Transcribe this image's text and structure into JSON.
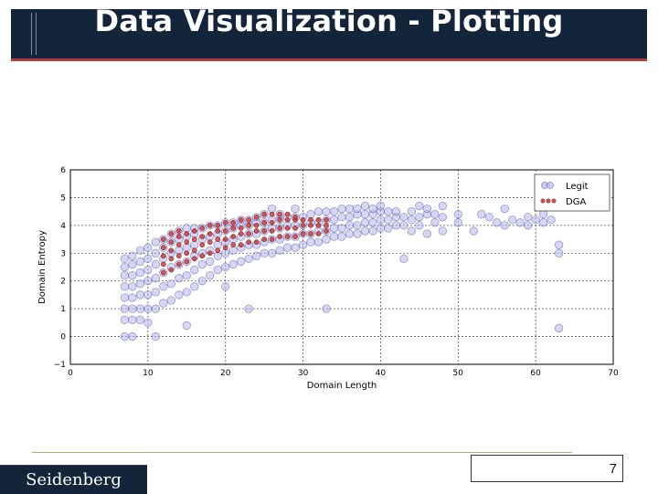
{
  "slide": {
    "title": "Data Visualization - Plotting",
    "brand": "Seidenberg",
    "page_number": "7"
  },
  "chart_data": {
    "type": "scatter",
    "xlabel": "Domain Length",
    "ylabel": "Domain Entropy",
    "xlim": [
      0,
      70
    ],
    "ylim": [
      -1,
      6
    ],
    "xticks": [
      "0",
      "10",
      "20",
      "30",
      "40",
      "50",
      "60",
      "70"
    ],
    "yticks": [
      "−1",
      "0",
      "1",
      "2",
      "3",
      "4",
      "5",
      "6"
    ],
    "grid": true,
    "legend_position": "top-right",
    "series": [
      {
        "name": "Legit",
        "color": "#8888dd",
        "points": [
          [
            7,
            0.0
          ],
          [
            7,
            0.6
          ],
          [
            7,
            1.0
          ],
          [
            7,
            1.4
          ],
          [
            7,
            1.8
          ],
          [
            7,
            2.2
          ],
          [
            7,
            2.5
          ],
          [
            7,
            2.8
          ],
          [
            8,
            0.0
          ],
          [
            8,
            0.6
          ],
          [
            8,
            1.0
          ],
          [
            8,
            1.4
          ],
          [
            8,
            1.8
          ],
          [
            8,
            2.2
          ],
          [
            8,
            2.6
          ],
          [
            8,
            2.9
          ],
          [
            9,
            0.6
          ],
          [
            9,
            1.0
          ],
          [
            9,
            1.5
          ],
          [
            9,
            1.9
          ],
          [
            9,
            2.3
          ],
          [
            9,
            2.7
          ],
          [
            9,
            3.1
          ],
          [
            10,
            0.5
          ],
          [
            10,
            1.0
          ],
          [
            10,
            1.5
          ],
          [
            10,
            2.0
          ],
          [
            10,
            2.4
          ],
          [
            10,
            2.8
          ],
          [
            10,
            3.2
          ],
          [
            11,
            0.0
          ],
          [
            11,
            1.0
          ],
          [
            11,
            1.6
          ],
          [
            11,
            2.1
          ],
          [
            11,
            2.6
          ],
          [
            11,
            3.0
          ],
          [
            11,
            3.4
          ],
          [
            12,
            1.2
          ],
          [
            12,
            1.8
          ],
          [
            12,
            2.3
          ],
          [
            12,
            2.8
          ],
          [
            12,
            3.2
          ],
          [
            12,
            3.5
          ],
          [
            13,
            1.3
          ],
          [
            13,
            1.9
          ],
          [
            13,
            2.5
          ],
          [
            13,
            3.0
          ],
          [
            13,
            3.4
          ],
          [
            13,
            3.7
          ],
          [
            14,
            1.5
          ],
          [
            14,
            2.1
          ],
          [
            14,
            2.6
          ],
          [
            14,
            3.1
          ],
          [
            14,
            3.5
          ],
          [
            14,
            3.8
          ],
          [
            15,
            0.4
          ],
          [
            15,
            1.6
          ],
          [
            15,
            2.2
          ],
          [
            15,
            2.7
          ],
          [
            15,
            3.2
          ],
          [
            15,
            3.6
          ],
          [
            15,
            3.9
          ],
          [
            16,
            1.8
          ],
          [
            16,
            2.4
          ],
          [
            16,
            2.9
          ],
          [
            16,
            3.3
          ],
          [
            16,
            3.7
          ],
          [
            16,
            3.9
          ],
          [
            17,
            2.0
          ],
          [
            17,
            2.6
          ],
          [
            17,
            3.0
          ],
          [
            17,
            3.5
          ],
          [
            17,
            3.9
          ],
          [
            18,
            2.2
          ],
          [
            18,
            2.7
          ],
          [
            18,
            3.1
          ],
          [
            18,
            3.6
          ],
          [
            18,
            4.0
          ],
          [
            19,
            2.4
          ],
          [
            19,
            2.9
          ],
          [
            19,
            3.3
          ],
          [
            19,
            3.7
          ],
          [
            19,
            4.0
          ],
          [
            20,
            1.8
          ],
          [
            20,
            2.5
          ],
          [
            20,
            3.0
          ],
          [
            20,
            3.4
          ],
          [
            20,
            3.8
          ],
          [
            20,
            4.1
          ],
          [
            21,
            2.6
          ],
          [
            21,
            3.1
          ],
          [
            21,
            3.5
          ],
          [
            21,
            3.9
          ],
          [
            21,
            4.1
          ],
          [
            22,
            2.7
          ],
          [
            22,
            3.2
          ],
          [
            22,
            3.6
          ],
          [
            22,
            4.0
          ],
          [
            22,
            4.2
          ],
          [
            23,
            1.0
          ],
          [
            23,
            2.8
          ],
          [
            23,
            3.3
          ],
          [
            23,
            3.7
          ],
          [
            23,
            4.0
          ],
          [
            23,
            4.2
          ],
          [
            24,
            2.9
          ],
          [
            24,
            3.3
          ],
          [
            24,
            3.7
          ],
          [
            24,
            4.1
          ],
          [
            24,
            4.3
          ],
          [
            25,
            3.0
          ],
          [
            25,
            3.4
          ],
          [
            25,
            3.8
          ],
          [
            25,
            4.1
          ],
          [
            25,
            4.4
          ],
          [
            26,
            3.0
          ],
          [
            26,
            3.5
          ],
          [
            26,
            3.9
          ],
          [
            26,
            4.2
          ],
          [
            26,
            4.6
          ],
          [
            27,
            3.1
          ],
          [
            27,
            3.5
          ],
          [
            27,
            3.9
          ],
          [
            27,
            4.2
          ],
          [
            27,
            4.4
          ],
          [
            28,
            3.2
          ],
          [
            28,
            3.6
          ],
          [
            28,
            4.0
          ],
          [
            28,
            4.3
          ],
          [
            29,
            3.2
          ],
          [
            29,
            3.6
          ],
          [
            29,
            4.0
          ],
          [
            29,
            4.3
          ],
          [
            29,
            4.6
          ],
          [
            30,
            3.3
          ],
          [
            30,
            3.7
          ],
          [
            30,
            4.0
          ],
          [
            30,
            4.3
          ],
          [
            31,
            3.4
          ],
          [
            31,
            3.7
          ],
          [
            31,
            4.1
          ],
          [
            31,
            4.4
          ],
          [
            32,
            3.4
          ],
          [
            32,
            3.8
          ],
          [
            32,
            4.1
          ],
          [
            32,
            4.5
          ],
          [
            33,
            1.0
          ],
          [
            33,
            3.5
          ],
          [
            33,
            3.8
          ],
          [
            33,
            4.2
          ],
          [
            33,
            4.5
          ],
          [
            34,
            3.6
          ],
          [
            34,
            3.9
          ],
          [
            34,
            4.2
          ],
          [
            34,
            4.5
          ],
          [
            35,
            3.6
          ],
          [
            35,
            3.9
          ],
          [
            35,
            4.3
          ],
          [
            35,
            4.6
          ],
          [
            36,
            3.7
          ],
          [
            36,
            4.0
          ],
          [
            36,
            4.3
          ],
          [
            36,
            4.6
          ],
          [
            37,
            3.7
          ],
          [
            37,
            4.0
          ],
          [
            37,
            4.4
          ],
          [
            37,
            4.6
          ],
          [
            38,
            3.8
          ],
          [
            38,
            4.1
          ],
          [
            38,
            4.4
          ],
          [
            38,
            4.7
          ],
          [
            39,
            3.8
          ],
          [
            39,
            4.1
          ],
          [
            39,
            4.4
          ],
          [
            39,
            4.6
          ],
          [
            40,
            3.9
          ],
          [
            40,
            4.2
          ],
          [
            40,
            4.5
          ],
          [
            40,
            4.7
          ],
          [
            41,
            3.9
          ],
          [
            41,
            4.2
          ],
          [
            41,
            4.5
          ],
          [
            42,
            4.0
          ],
          [
            42,
            4.3
          ],
          [
            42,
            4.5
          ],
          [
            43,
            2.8
          ],
          [
            43,
            4.0
          ],
          [
            43,
            4.3
          ],
          [
            44,
            3.8
          ],
          [
            44,
            4.2
          ],
          [
            44,
            4.5
          ],
          [
            45,
            4.0
          ],
          [
            45,
            4.3
          ],
          [
            45,
            4.7
          ],
          [
            46,
            3.7
          ],
          [
            46,
            4.4
          ],
          [
            46,
            4.6
          ],
          [
            47,
            4.1
          ],
          [
            47,
            4.4
          ],
          [
            48,
            3.8
          ],
          [
            48,
            4.3
          ],
          [
            48,
            4.7
          ],
          [
            50,
            4.1
          ],
          [
            50,
            4.4
          ],
          [
            52,
            3.8
          ],
          [
            53,
            4.4
          ],
          [
            54,
            4.3
          ],
          [
            55,
            4.1
          ],
          [
            56,
            4.0
          ],
          [
            56,
            4.6
          ],
          [
            57,
            4.2
          ],
          [
            58,
            4.1
          ],
          [
            59,
            4.0
          ],
          [
            59,
            4.3
          ],
          [
            60,
            4.2
          ],
          [
            61,
            4.1
          ],
          [
            61,
            4.4
          ],
          [
            62,
            4.2
          ],
          [
            63,
            3.0
          ],
          [
            63,
            3.3
          ],
          [
            63,
            0.3
          ]
        ]
      },
      {
        "name": "DGA",
        "color": "#cc3333",
        "points": [
          [
            12,
            2.3
          ],
          [
            12,
            2.6
          ],
          [
            12,
            2.9
          ],
          [
            12,
            3.2
          ],
          [
            12,
            3.5
          ],
          [
            13,
            2.4
          ],
          [
            13,
            2.8
          ],
          [
            13,
            3.1
          ],
          [
            13,
            3.4
          ],
          [
            13,
            3.7
          ],
          [
            14,
            2.6
          ],
          [
            14,
            2.9
          ],
          [
            14,
            3.3
          ],
          [
            14,
            3.6
          ],
          [
            14,
            3.8
          ],
          [
            15,
            2.7
          ],
          [
            15,
            3.0
          ],
          [
            15,
            3.4
          ],
          [
            15,
            3.7
          ],
          [
            16,
            2.8
          ],
          [
            16,
            3.1
          ],
          [
            16,
            3.5
          ],
          [
            16,
            3.8
          ],
          [
            17,
            2.9
          ],
          [
            17,
            3.3
          ],
          [
            17,
            3.6
          ],
          [
            17,
            3.9
          ],
          [
            18,
            3.0
          ],
          [
            18,
            3.4
          ],
          [
            18,
            3.7
          ],
          [
            18,
            4.0
          ],
          [
            19,
            3.1
          ],
          [
            19,
            3.5
          ],
          [
            19,
            3.8
          ],
          [
            19,
            4.0
          ],
          [
            20,
            3.2
          ],
          [
            20,
            3.5
          ],
          [
            20,
            3.8
          ],
          [
            20,
            4.1
          ],
          [
            21,
            3.3
          ],
          [
            21,
            3.6
          ],
          [
            21,
            3.9
          ],
          [
            21,
            4.1
          ],
          [
            22,
            3.3
          ],
          [
            22,
            3.7
          ],
          [
            22,
            3.9
          ],
          [
            22,
            4.2
          ],
          [
            23,
            3.4
          ],
          [
            23,
            3.7
          ],
          [
            23,
            4.0
          ],
          [
            23,
            4.2
          ],
          [
            24,
            3.4
          ],
          [
            24,
            3.8
          ],
          [
            24,
            4.0
          ],
          [
            24,
            4.3
          ],
          [
            25,
            3.5
          ],
          [
            25,
            3.8
          ],
          [
            25,
            4.1
          ],
          [
            25,
            4.4
          ],
          [
            26,
            3.5
          ],
          [
            26,
            3.8
          ],
          [
            26,
            4.1
          ],
          [
            26,
            4.4
          ],
          [
            27,
            3.6
          ],
          [
            27,
            3.9
          ],
          [
            27,
            4.2
          ],
          [
            27,
            4.4
          ],
          [
            28,
            3.6
          ],
          [
            28,
            3.9
          ],
          [
            28,
            4.2
          ],
          [
            28,
            4.4
          ],
          [
            29,
            3.6
          ],
          [
            29,
            3.9
          ],
          [
            29,
            4.2
          ],
          [
            29,
            4.3
          ],
          [
            30,
            3.7
          ],
          [
            30,
            4.0
          ],
          [
            30,
            4.2
          ],
          [
            31,
            3.7
          ],
          [
            31,
            4.0
          ],
          [
            31,
            4.2
          ],
          [
            32,
            3.7
          ],
          [
            32,
            4.0
          ],
          [
            32,
            4.2
          ],
          [
            33,
            3.8
          ],
          [
            33,
            4.0
          ],
          [
            33,
            4.2
          ]
        ]
      }
    ]
  }
}
